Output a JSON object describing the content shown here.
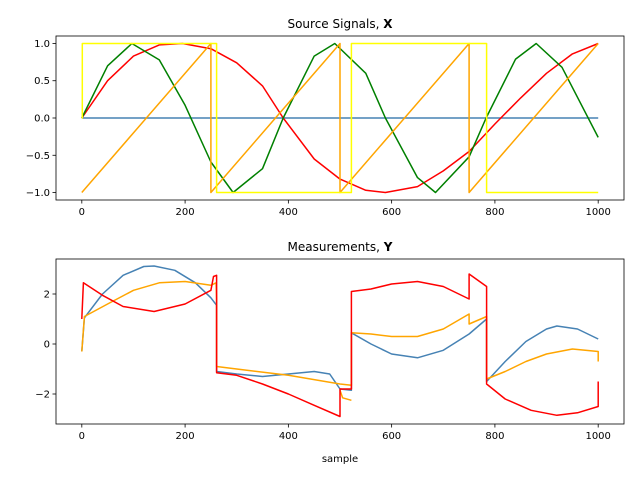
{
  "chart_data": [
    {
      "type": "line",
      "title": "Source Signals,",
      "title_bold": "X",
      "xlabel": "",
      "ylabel": "",
      "xlim": [
        -50,
        1050
      ],
      "ylim": [
        -1.1,
        1.1
      ],
      "xticks": [
        0,
        200,
        400,
        600,
        800,
        1000
      ],
      "yticks": [
        -1.0,
        -0.5,
        0.0,
        0.5,
        1.0
      ],
      "xtick_labels": [
        "0",
        "200",
        "400",
        "600",
        "800",
        "1000"
      ],
      "ytick_labels": [
        "−1.0",
        "−0.5",
        "0.0",
        "0.5",
        "1.0"
      ],
      "grid": false,
      "series": [
        {
          "color": "#4682b4",
          "x": [
            0,
            1000
          ],
          "y": [
            0,
            0
          ]
        },
        {
          "color": "#ff0000",
          "x": [
            0,
            50,
            100,
            150,
            195,
            250,
            300,
            350,
            390,
            450,
            500,
            550,
            588,
            650,
            700,
            750,
            800,
            850,
            900,
            950,
            1000
          ],
          "y": [
            0.0,
            0.5,
            0.83,
            0.98,
            1.0,
            0.93,
            0.74,
            0.43,
            0.0,
            -0.55,
            -0.82,
            -0.97,
            -1.0,
            -0.92,
            -0.71,
            -0.45,
            -0.08,
            0.27,
            0.6,
            0.86,
            1.0
          ]
        },
        {
          "color": "#008000",
          "x": [
            0,
            50,
            97,
            150,
            200,
            250,
            293,
            350,
            390,
            450,
            490,
            550,
            588,
            650,
            685,
            750,
            783,
            840,
            880,
            930,
            1000
          ],
          "y": [
            0.0,
            0.7,
            1.0,
            0.78,
            0.17,
            -0.59,
            -1.0,
            -0.68,
            0.0,
            0.83,
            1.0,
            0.6,
            0.0,
            -0.8,
            -1.0,
            -0.52,
            0.0,
            0.79,
            1.0,
            0.68,
            -0.26
          ]
        },
        {
          "color": "#ffa500",
          "x": [
            0,
            250,
            250,
            500,
            500,
            750,
            750,
            1000
          ],
          "y": [
            -1.0,
            1.0,
            -1.0,
            1.0,
            -1.0,
            1.0,
            -1.0,
            1.0
          ]
        },
        {
          "color": "#ffff00",
          "x": [
            0,
            1,
            1,
            261,
            261,
            522,
            522,
            784,
            784,
            1000
          ],
          "y": [
            0,
            0,
            1,
            1,
            -1,
            -1,
            1,
            1,
            -1,
            -1
          ]
        }
      ]
    },
    {
      "type": "line",
      "title": "Measurements,",
      "title_bold": "Y",
      "xlabel": "sample",
      "ylabel": "",
      "xlim": [
        -50,
        1050
      ],
      "ylim": [
        -3.2,
        3.4
      ],
      "xticks": [
        0,
        200,
        400,
        600,
        800,
        1000
      ],
      "yticks": [
        -2,
        0,
        2
      ],
      "xtick_labels": [
        "0",
        "200",
        "400",
        "600",
        "800",
        "1000"
      ],
      "ytick_labels": [
        "−2",
        "0",
        "2"
      ],
      "grid": false,
      "series": [
        {
          "color": "#4682b4",
          "x": [
            0,
            5,
            40,
            80,
            120,
            140,
            180,
            220,
            250,
            261,
            261,
            300,
            350,
            400,
            450,
            480,
            500,
            522,
            522,
            560,
            600,
            650,
            700,
            750,
            784,
            784,
            820,
            860,
            900,
            920,
            960,
            1000
          ],
          "y": [
            -0.3,
            1.05,
            2.0,
            2.75,
            3.1,
            3.12,
            2.95,
            2.45,
            1.85,
            1.55,
            -1.1,
            -1.2,
            -1.3,
            -1.2,
            -1.1,
            -1.2,
            -1.8,
            -1.85,
            0.45,
            0.0,
            -0.4,
            -0.55,
            -0.25,
            0.4,
            1.0,
            -1.5,
            -0.7,
            0.1,
            0.6,
            0.72,
            0.6,
            0.2
          ]
        },
        {
          "color": "#ffa500",
          "x": [
            0,
            5,
            50,
            100,
            150,
            200,
            250,
            260,
            261,
            261,
            300,
            400,
            500,
            522,
            522,
            560,
            600,
            650,
            700,
            750,
            750,
            784,
            784,
            820,
            860,
            900,
            950,
            1000,
            1000
          ],
          "y": [
            -0.3,
            1.1,
            1.6,
            2.15,
            2.45,
            2.5,
            2.35,
            2.45,
            1.8,
            -0.9,
            -1.0,
            -1.25,
            -1.6,
            -1.65,
            0.45,
            0.4,
            0.3,
            0.3,
            0.6,
            1.2,
            0.8,
            1.1,
            -1.4,
            -1.1,
            -0.7,
            -0.4,
            -0.2,
            -0.3,
            -0.7
          ]
        },
        {
          "color": "#ffa500",
          "x": [
            500,
            505,
            522
          ],
          "y": [
            -1.85,
            -2.15,
            -2.25
          ]
        },
        {
          "color": "#ff0000",
          "x": [
            0,
            3,
            40,
            80,
            140,
            200,
            250,
            255,
            261,
            261,
            300,
            350,
            400,
            450,
            500,
            500,
            522,
            522,
            560,
            600,
            650,
            700,
            750,
            750,
            784,
            784,
            820,
            870,
            920,
            960,
            1000,
            1000
          ],
          "y": [
            1.0,
            2.45,
            1.95,
            1.5,
            1.3,
            1.6,
            2.15,
            2.7,
            2.75,
            -1.15,
            -1.25,
            -1.6,
            -2.0,
            -2.45,
            -2.9,
            -1.8,
            -1.8,
            2.1,
            2.2,
            2.4,
            2.5,
            2.3,
            1.8,
            2.8,
            2.3,
            -1.6,
            -2.2,
            -2.65,
            -2.85,
            -2.75,
            -2.5,
            -1.5
          ]
        }
      ]
    }
  ]
}
